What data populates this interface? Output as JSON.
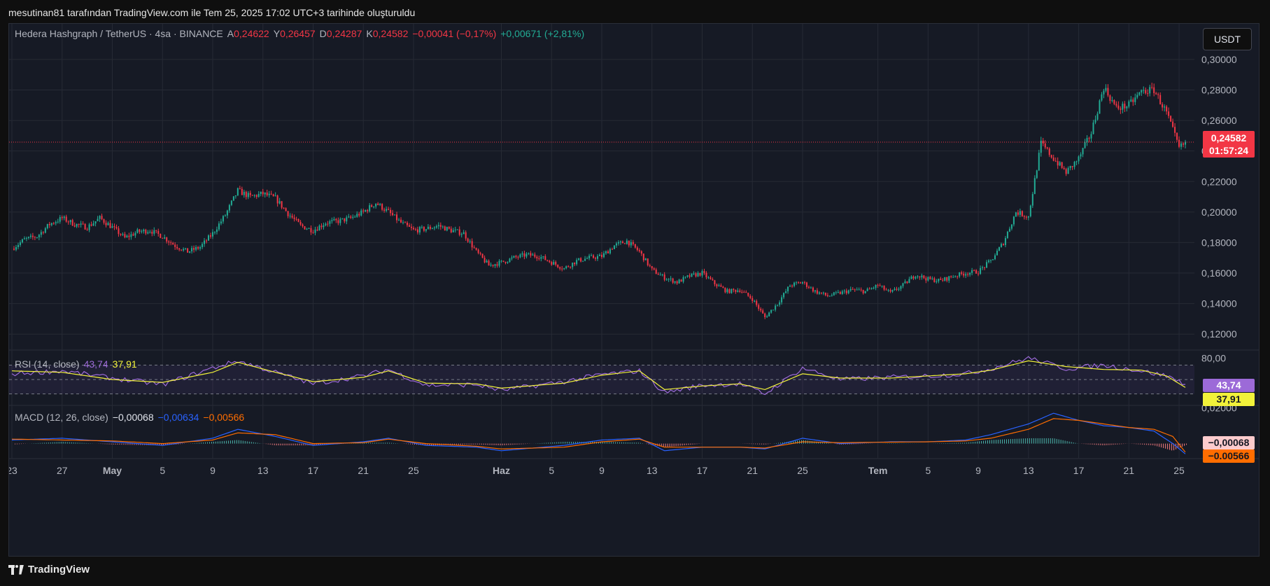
{
  "caption": "mesutinan81 tarafından TradingView.com ile Tem 25, 2025 17:02 UTC+3 tarihinde oluşturuldu",
  "footer": {
    "brand": "TradingView",
    "logo_icon": "tradingview-logo-icon"
  },
  "header": {
    "symbol": "Hedera Hashgraph / TetherUS · 4sa · BINANCE",
    "open_label": "A",
    "open": "0,24622",
    "high_label": "Y",
    "high": "0,26457",
    "low_label": "D",
    "low": "0,24287",
    "close_label": "K",
    "close": "0,24582",
    "change": "−0,00041 (−0,17%)",
    "change2": "+0,00671 (+2,81%)",
    "currency_button": "USDT"
  },
  "badges": {
    "last_price": "0,24582",
    "countdown": "01:57:24",
    "rsi_value": "43,74",
    "rsi_ma_value": "37,91",
    "macd_value": "−0,00068",
    "signal_value": "−0.00566"
  },
  "colors": {
    "up": "#22ab94",
    "down": "#f23645",
    "rsi": "#9c6ad8",
    "rsi_ma": "#f2f23a",
    "macd": "#2962ff",
    "signal": "#ff6d00",
    "background": "#161a25",
    "grid": "#262a35"
  },
  "chart_data": [
    {
      "type": "candlestick",
      "title": "Hedera Hashgraph / TetherUS · 4sa · BINANCE",
      "ylim": [
        0.11,
        0.305
      ],
      "y_ticks": [
        "0,30000",
        "0,28000",
        "0,26000",
        "0,24000",
        "0,22000",
        "0,20000",
        "0,18000",
        "0,16000",
        "0,14000",
        "0,12000"
      ],
      "y_tick_values": [
        0.3,
        0.28,
        0.26,
        0.24,
        0.22,
        0.2,
        0.18,
        0.16,
        0.14,
        0.12
      ],
      "x_ticks": [
        "23",
        "27",
        "May",
        "5",
        "9",
        "13",
        "17",
        "21",
        "25",
        "Haz",
        "5",
        "9",
        "13",
        "17",
        "21",
        "25",
        "Tem",
        "5",
        "9",
        "13",
        "17",
        "21",
        "25"
      ],
      "x_range_days": [
        0,
        94
      ],
      "x_tick_days": [
        0,
        4,
        8,
        12,
        16,
        20,
        24,
        28,
        32,
        39,
        43,
        47,
        51,
        55,
        59,
        63,
        69,
        73,
        77,
        81,
        85,
        89,
        93
      ],
      "last_price": 0.24582,
      "key_points": [
        [
          0,
          0.176
        ],
        [
          1,
          0.182
        ],
        [
          2,
          0.184
        ],
        [
          3,
          0.192
        ],
        [
          4,
          0.196
        ],
        [
          5,
          0.192
        ],
        [
          6,
          0.19
        ],
        [
          7,
          0.196
        ],
        [
          8,
          0.19
        ],
        [
          9,
          0.183
        ],
        [
          10,
          0.187
        ],
        [
          11,
          0.188
        ],
        [
          12,
          0.184
        ],
        [
          13,
          0.178
        ],
        [
          14,
          0.174
        ],
        [
          15,
          0.177
        ],
        [
          16,
          0.186
        ],
        [
          17,
          0.198
        ],
        [
          18,
          0.214
        ],
        [
          19,
          0.21
        ],
        [
          20,
          0.212
        ],
        [
          21,
          0.209
        ],
        [
          22,
          0.199
        ],
        [
          23,
          0.191
        ],
        [
          24,
          0.188
        ],
        [
          25,
          0.193
        ],
        [
          26,
          0.194
        ],
        [
          27,
          0.196
        ],
        [
          28,
          0.2
        ],
        [
          29,
          0.206
        ],
        [
          30,
          0.2
        ],
        [
          31,
          0.193
        ],
        [
          32,
          0.188
        ],
        [
          33,
          0.189
        ],
        [
          34,
          0.191
        ],
        [
          35,
          0.188
        ],
        [
          36,
          0.186
        ],
        [
          37,
          0.174
        ],
        [
          38,
          0.165
        ],
        [
          39,
          0.167
        ],
        [
          40,
          0.17
        ],
        [
          41,
          0.172
        ],
        [
          42,
          0.171
        ],
        [
          43,
          0.167
        ],
        [
          44,
          0.163
        ],
        [
          45,
          0.168
        ],
        [
          46,
          0.17
        ],
        [
          47,
          0.171
        ],
        [
          48,
          0.178
        ],
        [
          49,
          0.181
        ],
        [
          50,
          0.174
        ],
        [
          51,
          0.162
        ],
        [
          52,
          0.157
        ],
        [
          53,
          0.154
        ],
        [
          54,
          0.158
        ],
        [
          55,
          0.16
        ],
        [
          56,
          0.153
        ],
        [
          57,
          0.148
        ],
        [
          58,
          0.149
        ],
        [
          59,
          0.143
        ],
        [
          60,
          0.131
        ],
        [
          61,
          0.14
        ],
        [
          62,
          0.152
        ],
        [
          63,
          0.154
        ],
        [
          64,
          0.148
        ],
        [
          65,
          0.145
        ],
        [
          66,
          0.147
        ],
        [
          67,
          0.149
        ],
        [
          68,
          0.148
        ],
        [
          69,
          0.152
        ],
        [
          70,
          0.147
        ],
        [
          71,
          0.152
        ],
        [
          72,
          0.159
        ],
        [
          73,
          0.156
        ],
        [
          74,
          0.155
        ],
        [
          75,
          0.158
        ],
        [
          76,
          0.16
        ],
        [
          77,
          0.161
        ],
        [
          78,
          0.168
        ],
        [
          79,
          0.18
        ],
        [
          80,
          0.2
        ],
        [
          81,
          0.197
        ],
        [
          82,
          0.245
        ],
        [
          83,
          0.235
        ],
        [
          84,
          0.226
        ],
        [
          85,
          0.235
        ],
        [
          86,
          0.252
        ],
        [
          87,
          0.282
        ],
        [
          88,
          0.268
        ],
        [
          89,
          0.27
        ],
        [
          90,
          0.279
        ],
        [
          91,
          0.28
        ],
        [
          92,
          0.265
        ],
        [
          93,
          0.242
        ],
        [
          93.6,
          0.2458
        ]
      ]
    },
    {
      "type": "line",
      "title": "RSI (14, close)",
      "value_label": "43,74",
      "ma_label": "37,91",
      "ylim": [
        15,
        90
      ],
      "bands": [
        30,
        50,
        70
      ],
      "y_ticks": [
        "80,00"
      ],
      "y_tick_values": [
        80
      ],
      "series": [
        {
          "color": "#9c6ad8",
          "key_points": [
            [
              0,
              58
            ],
            [
              4,
              62
            ],
            [
              8,
              52
            ],
            [
              12,
              43
            ],
            [
              16,
              66
            ],
            [
              18,
              76
            ],
            [
              21,
              60
            ],
            [
              24,
              44
            ],
            [
              28,
              55
            ],
            [
              30,
              64
            ],
            [
              33,
              42
            ],
            [
              37,
              43
            ],
            [
              39,
              35
            ],
            [
              44,
              47
            ],
            [
              47,
              57
            ],
            [
              50,
              62
            ],
            [
              52,
              32
            ],
            [
              55,
              42
            ],
            [
              58,
              44
            ],
            [
              60,
              30
            ],
            [
              63,
              66
            ],
            [
              66,
              50
            ],
            [
              70,
              53
            ],
            [
              73,
              55
            ],
            [
              76,
              58
            ],
            [
              78,
              65
            ],
            [
              81,
              80
            ],
            [
              84,
              65
            ],
            [
              87,
              70
            ],
            [
              90,
              62
            ],
            [
              92,
              55
            ],
            [
              93.6,
              43.74
            ]
          ]
        },
        {
          "color": "#f2f23a",
          "key_points": [
            [
              0,
              62
            ],
            [
              4,
              60
            ],
            [
              8,
              50
            ],
            [
              12,
              46
            ],
            [
              16,
              60
            ],
            [
              18,
              74
            ],
            [
              21,
              60
            ],
            [
              24,
              47
            ],
            [
              28,
              53
            ],
            [
              30,
              62
            ],
            [
              33,
              45
            ],
            [
              37,
              44
            ],
            [
              39,
              38
            ],
            [
              44,
              45
            ],
            [
              47,
              56
            ],
            [
              50,
              62
            ],
            [
              52,
              36
            ],
            [
              55,
              41
            ],
            [
              58,
              44
            ],
            [
              60,
              36
            ],
            [
              63,
              58
            ],
            [
              66,
              52
            ],
            [
              70,
              52
            ],
            [
              73,
              55
            ],
            [
              76,
              58
            ],
            [
              78,
              63
            ],
            [
              81,
              76
            ],
            [
              84,
              68
            ],
            [
              87,
              64
            ],
            [
              90,
              63
            ],
            [
              92,
              55
            ],
            [
              93.6,
              37.91
            ]
          ]
        }
      ]
    },
    {
      "type": "line",
      "title": "MACD (12, 26, close)",
      "macd_label": "−0,00068",
      "macd_blue_label": "−0,00634",
      "signal_label": "−0,00566",
      "ylim": [
        -0.008,
        0.021
      ],
      "y_ticks": [
        "0,02000"
      ],
      "y_tick_values": [
        0.02
      ],
      "series": [
        {
          "name": "MACD",
          "color": "#2962ff",
          "key_points": [
            [
              0,
              0.002
            ],
            [
              4,
              0.003
            ],
            [
              8,
              0.001
            ],
            [
              12,
              -0.001
            ],
            [
              16,
              0.003
            ],
            [
              18,
              0.008
            ],
            [
              21,
              0.004
            ],
            [
              24,
              -0.001
            ],
            [
              28,
              0.001
            ],
            [
              30,
              0.003
            ],
            [
              33,
              -0.001
            ],
            [
              37,
              -0.002
            ],
            [
              39,
              -0.004
            ],
            [
              44,
              -0.001
            ],
            [
              47,
              0.002
            ],
            [
              50,
              0.003
            ],
            [
              52,
              -0.004
            ],
            [
              55,
              -0.002
            ],
            [
              58,
              -0.002
            ],
            [
              60,
              -0.003
            ],
            [
              63,
              0.003
            ],
            [
              66,
              0.0
            ],
            [
              70,
              0.001
            ],
            [
              73,
              0.001
            ],
            [
              76,
              0.002
            ],
            [
              78,
              0.005
            ],
            [
              81,
              0.011
            ],
            [
              83,
              0.017
            ],
            [
              85,
              0.013
            ],
            [
              87,
              0.01
            ],
            [
              89,
              0.009
            ],
            [
              91,
              0.007
            ],
            [
              92.5,
              0.0
            ],
            [
              93.6,
              -0.00634
            ]
          ]
        },
        {
          "name": "Signal",
          "color": "#ff6d00",
          "key_points": [
            [
              0,
              0.0025
            ],
            [
              4,
              0.002
            ],
            [
              8,
              0.0015
            ],
            [
              12,
              0.0
            ],
            [
              16,
              0.002
            ],
            [
              18,
              0.006
            ],
            [
              21,
              0.005
            ],
            [
              24,
              0.0
            ],
            [
              28,
              0.0005
            ],
            [
              30,
              0.0025
            ],
            [
              33,
              0.0
            ],
            [
              37,
              -0.0015
            ],
            [
              39,
              -0.003
            ],
            [
              44,
              -0.002
            ],
            [
              47,
              0.001
            ],
            [
              50,
              0.0025
            ],
            [
              52,
              -0.002
            ],
            [
              55,
              -0.002
            ],
            [
              58,
              -0.002
            ],
            [
              60,
              -0.0025
            ],
            [
              63,
              0.001
            ],
            [
              66,
              0.0005
            ],
            [
              70,
              0.0008
            ],
            [
              73,
              0.001
            ],
            [
              76,
              0.0015
            ],
            [
              78,
              0.003
            ],
            [
              81,
              0.008
            ],
            [
              83,
              0.014
            ],
            [
              85,
              0.013
            ],
            [
              87,
              0.011
            ],
            [
              89,
              0.009
            ],
            [
              91,
              0.008
            ],
            [
              92.5,
              0.004
            ],
            [
              93.6,
              -0.00566
            ]
          ]
        }
      ]
    }
  ]
}
